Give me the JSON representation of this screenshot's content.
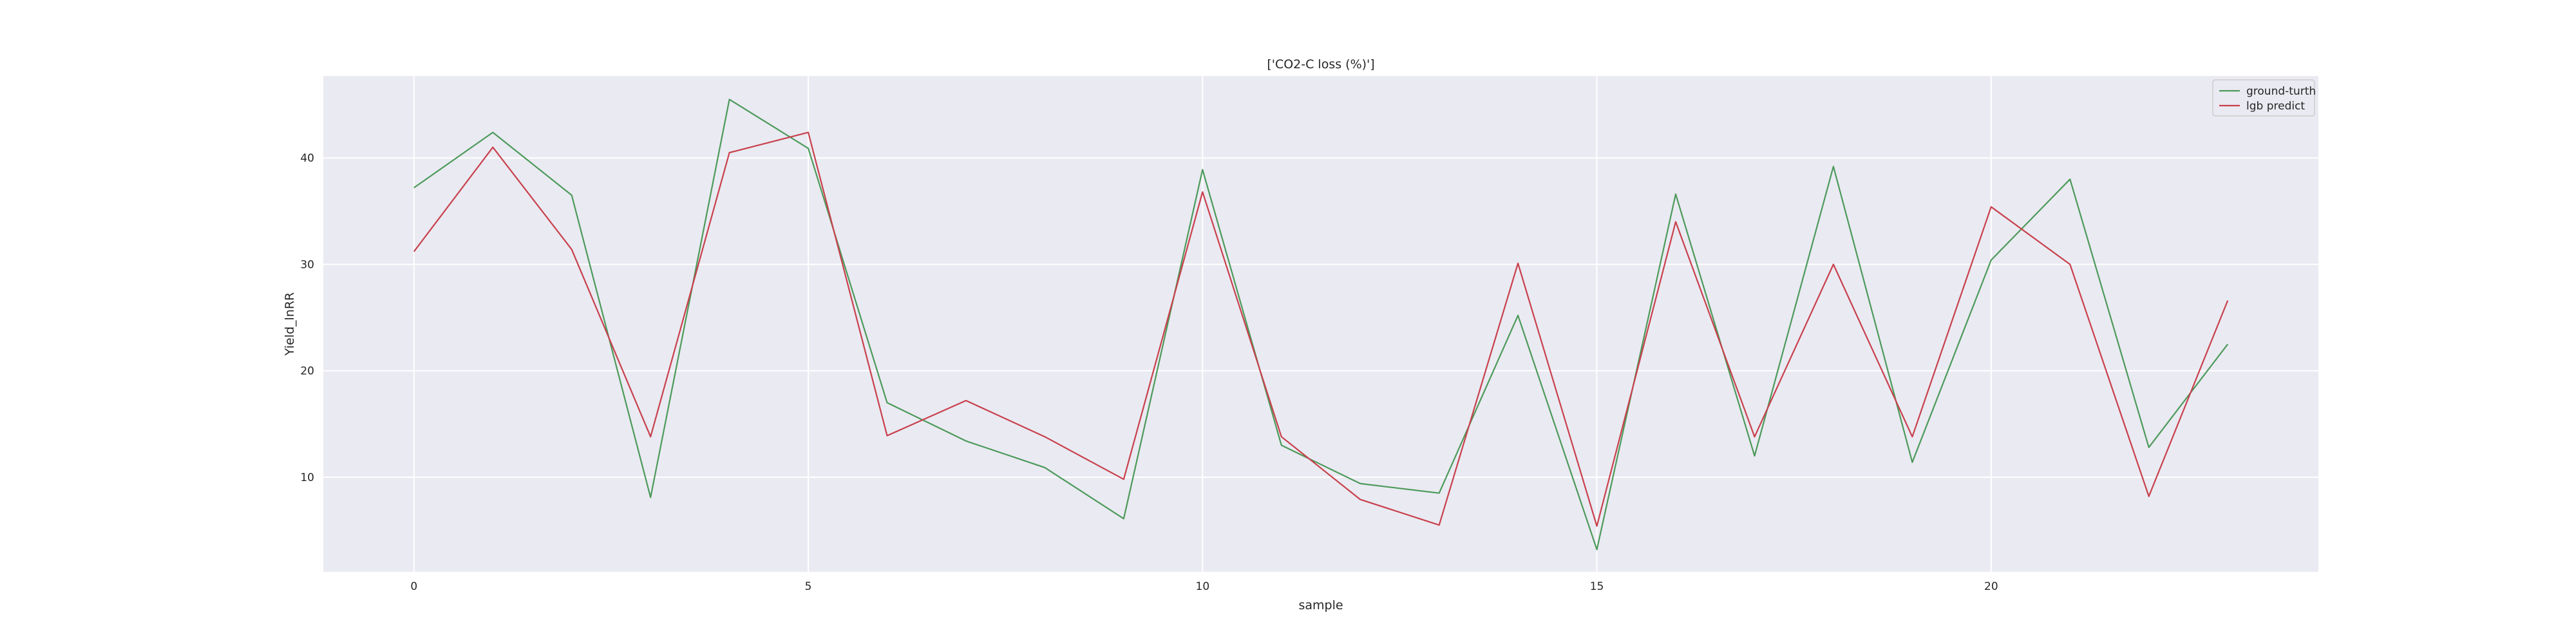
{
  "chart_data": {
    "type": "line",
    "title": "['CO2-C loss (%)']",
    "xlabel": "sample",
    "ylabel": "Yield_lnRR",
    "xlim": [
      -1.15,
      24.15
    ],
    "ylim": [
      1.1,
      47.7
    ],
    "x_ticks": [
      0,
      5,
      10,
      15,
      20
    ],
    "y_ticks": [
      10,
      20,
      30,
      40
    ],
    "grid": true,
    "legend_position": "top-right",
    "x": [
      0,
      1,
      2,
      3,
      4,
      5,
      6,
      7,
      8,
      9,
      10,
      11,
      12,
      13,
      14,
      15,
      16,
      17,
      18,
      19,
      20,
      21,
      22,
      23
    ],
    "series": [
      {
        "name": "ground-turth",
        "color": "#4c9a5a",
        "values": [
          37.2,
          42.4,
          36.5,
          8.1,
          45.5,
          40.9,
          17.0,
          13.4,
          10.9,
          6.1,
          38.9,
          13.0,
          9.4,
          8.5,
          25.2,
          3.2,
          36.6,
          12.0,
          39.2,
          11.4,
          30.4,
          38.0,
          12.8,
          22.5
        ]
      },
      {
        "name": "lgb predict",
        "color": "#c8404c",
        "values": [
          31.2,
          41.0,
          31.4,
          13.8,
          40.5,
          42.4,
          13.9,
          17.2,
          13.8,
          9.8,
          36.8,
          13.8,
          7.9,
          5.5,
          30.1,
          5.4,
          34.0,
          13.8,
          30.0,
          13.8,
          35.4,
          30.0,
          8.2,
          26.6
        ]
      }
    ]
  }
}
